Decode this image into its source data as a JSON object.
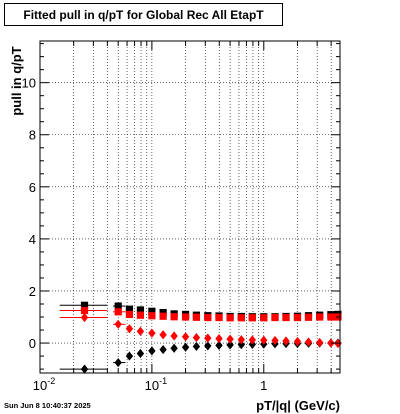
{
  "title": "Fitted pull in q/pT for Global Rec All EtapT",
  "timestamp": "Sun Jun  8 10:40:37 2025",
  "chart_data": {
    "type": "scatter",
    "title": "Fitted pull in q/pT for Global Rec All EtapT",
    "xlabel": "pT/|q| (GeV/c)",
    "ylabel": "pull in q/pT",
    "xscale": "log",
    "xlim": [
      0.01,
      4.8
    ],
    "ylim": [
      -1.15,
      11.6
    ],
    "grid": true,
    "x_ticks": [
      {
        "value": 0.01,
        "label": "10",
        "exp": "-2"
      },
      {
        "value": 0.1,
        "label": "10",
        "exp": "-1"
      },
      {
        "value": 1,
        "label": "1",
        "exp": ""
      }
    ],
    "y_ticks": [
      {
        "value": 0,
        "label": "0"
      },
      {
        "value": 2,
        "label": "2"
      },
      {
        "value": 4,
        "label": "4"
      },
      {
        "value": 6,
        "label": "6"
      },
      {
        "value": 8,
        "label": "8"
      },
      {
        "value": 10,
        "label": "10"
      }
    ],
    "series": [
      {
        "color": "#000000",
        "marker": "square",
        "role": "sigma",
        "points": [
          {
            "x": 0.025,
            "y": 1.45,
            "xerr": [
              0.015,
              0.04
            ]
          },
          {
            "x": 0.05,
            "y": 1.42,
            "xerr": [
              0.045,
              0.058
            ]
          },
          {
            "x": 0.063,
            "y": 1.3
          },
          {
            "x": 0.079,
            "y": 1.27
          },
          {
            "x": 0.1,
            "y": 1.22
          },
          {
            "x": 0.126,
            "y": 1.17
          },
          {
            "x": 0.158,
            "y": 1.12
          },
          {
            "x": 0.2,
            "y": 1.1
          },
          {
            "x": 0.25,
            "y": 1.07
          },
          {
            "x": 0.316,
            "y": 1.05
          },
          {
            "x": 0.398,
            "y": 1.04
          },
          {
            "x": 0.5,
            "y": 1.02
          },
          {
            "x": 0.63,
            "y": 1.02
          },
          {
            "x": 0.79,
            "y": 1.01
          },
          {
            "x": 1.0,
            "y": 1.01
          },
          {
            "x": 1.26,
            "y": 1.01
          },
          {
            "x": 1.58,
            "y": 1.02
          },
          {
            "x": 2.0,
            "y": 1.03
          },
          {
            "x": 2.51,
            "y": 1.05
          },
          {
            "x": 3.16,
            "y": 1.07
          },
          {
            "x": 3.98,
            "y": 1.09
          },
          {
            "x": 4.6,
            "y": 1.1
          }
        ]
      },
      {
        "color": "#000000",
        "marker": "diamond",
        "role": "mean",
        "points": [
          {
            "x": 0.025,
            "y": -1.0,
            "xerr": [
              0.015,
              0.04
            ]
          },
          {
            "x": 0.05,
            "y": -0.75,
            "xerr": [
              0.045,
              0.058
            ]
          },
          {
            "x": 0.063,
            "y": -0.5
          },
          {
            "x": 0.079,
            "y": -0.4
          },
          {
            "x": 0.1,
            "y": -0.3
          },
          {
            "x": 0.126,
            "y": -0.25
          },
          {
            "x": 0.158,
            "y": -0.2
          },
          {
            "x": 0.2,
            "y": -0.16
          },
          {
            "x": 0.25,
            "y": -0.13
          },
          {
            "x": 0.316,
            "y": -0.11
          },
          {
            "x": 0.398,
            "y": -0.09
          },
          {
            "x": 0.5,
            "y": -0.07
          },
          {
            "x": 0.63,
            "y": -0.06
          },
          {
            "x": 0.79,
            "y": -0.05
          },
          {
            "x": 1.0,
            "y": -0.04
          },
          {
            "x": 1.26,
            "y": -0.03
          },
          {
            "x": 1.58,
            "y": -0.02
          },
          {
            "x": 2.0,
            "y": -0.02
          },
          {
            "x": 2.51,
            "y": -0.01
          },
          {
            "x": 3.16,
            "y": 0.0
          },
          {
            "x": 3.98,
            "y": 0.0
          },
          {
            "x": 4.6,
            "y": 0.0
          }
        ]
      },
      {
        "color": "#ff0000",
        "marker": "square",
        "role": "sigma",
        "points": [
          {
            "x": 0.025,
            "y": 1.25,
            "xerr": [
              0.015,
              0.04
            ]
          },
          {
            "x": 0.05,
            "y": 1.2,
            "xerr": [
              0.045,
              0.058
            ]
          },
          {
            "x": 0.063,
            "y": 1.1
          },
          {
            "x": 0.079,
            "y": 1.07
          },
          {
            "x": 0.1,
            "y": 1.05
          },
          {
            "x": 0.126,
            "y": 1.03
          },
          {
            "x": 0.158,
            "y": 1.01
          },
          {
            "x": 0.2,
            "y": 1.0
          },
          {
            "x": 0.25,
            "y": 0.99
          },
          {
            "x": 0.316,
            "y": 0.98
          },
          {
            "x": 0.398,
            "y": 0.98
          },
          {
            "x": 0.5,
            "y": 0.97
          },
          {
            "x": 0.63,
            "y": 0.97
          },
          {
            "x": 0.79,
            "y": 0.97
          },
          {
            "x": 1.0,
            "y": 0.97
          },
          {
            "x": 1.26,
            "y": 0.98
          },
          {
            "x": 1.58,
            "y": 0.98
          },
          {
            "x": 2.0,
            "y": 0.98
          },
          {
            "x": 2.51,
            "y": 0.99
          },
          {
            "x": 3.16,
            "y": 1.0
          },
          {
            "x": 3.98,
            "y": 1.0
          },
          {
            "x": 4.6,
            "y": 1.0
          }
        ]
      },
      {
        "color": "#ff0000",
        "marker": "diamond",
        "role": "mean",
        "points": [
          {
            "x": 0.025,
            "y": 0.98,
            "xerr": [
              0.015,
              0.04
            ]
          },
          {
            "x": 0.05,
            "y": 0.72,
            "xerr": [
              0.045,
              0.058
            ]
          },
          {
            "x": 0.063,
            "y": 0.55
          },
          {
            "x": 0.079,
            "y": 0.45
          },
          {
            "x": 0.1,
            "y": 0.38
          },
          {
            "x": 0.126,
            "y": 0.32
          },
          {
            "x": 0.158,
            "y": 0.27
          },
          {
            "x": 0.2,
            "y": 0.24
          },
          {
            "x": 0.25,
            "y": 0.21
          },
          {
            "x": 0.316,
            "y": 0.19
          },
          {
            "x": 0.398,
            "y": 0.17
          },
          {
            "x": 0.5,
            "y": 0.15
          },
          {
            "x": 0.63,
            "y": 0.13
          },
          {
            "x": 0.79,
            "y": 0.12
          },
          {
            "x": 1.0,
            "y": 0.11
          },
          {
            "x": 1.26,
            "y": 0.1
          },
          {
            "x": 1.58,
            "y": 0.08
          },
          {
            "x": 2.0,
            "y": 0.06
          },
          {
            "x": 2.51,
            "y": 0.04
          },
          {
            "x": 3.16,
            "y": 0.02
          },
          {
            "x": 3.98,
            "y": 0.0
          },
          {
            "x": 4.6,
            "y": -0.02
          }
        ]
      }
    ]
  }
}
